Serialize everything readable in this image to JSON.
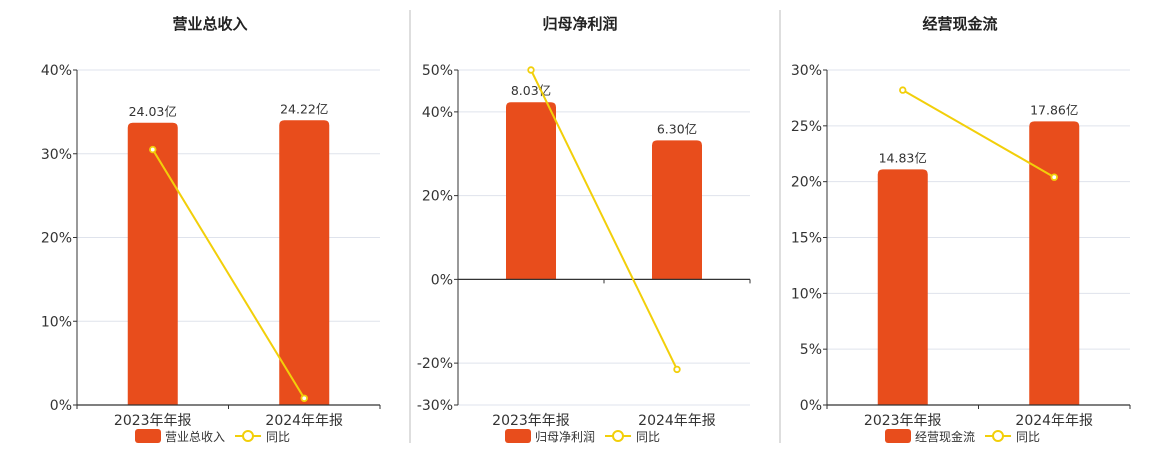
{
  "colors": {
    "bar": "#e84d1c",
    "line": "#f2cf0a",
    "grid": "#dfe3ec",
    "axis": "#333333",
    "divider": "#bdbdbd"
  },
  "legend": {
    "bar_icon": "filled-rounded-rect",
    "line_icon": "line-with-hollow-circle",
    "placement": "bottom-center"
  },
  "chart_data": [
    {
      "type": "bar",
      "title": "营业总收入",
      "categories": [
        "2023年年报",
        "2024年年报"
      ],
      "bar_label_name": "营业总收入",
      "line_label_name": "同比",
      "bar_labels": [
        "24.03亿",
        "24.22亿"
      ],
      "ylim": [
        0,
        40
      ],
      "yticks": [
        0,
        10,
        20,
        30,
        40
      ],
      "yticklabels": [
        "0%",
        "10%",
        "20%",
        "30%",
        "40%"
      ],
      "series": [
        {
          "name": "营业总收入",
          "type": "bar",
          "values": [
            33.7,
            34.0
          ]
        },
        {
          "name": "同比",
          "type": "line",
          "values": [
            30.5,
            0.8
          ]
        }
      ]
    },
    {
      "type": "bar",
      "title": "归母净利润",
      "categories": [
        "2023年年报",
        "2024年年报"
      ],
      "bar_label_name": "归母净利润",
      "line_label_name": "同比",
      "bar_labels": [
        "8.03亿",
        "6.30亿"
      ],
      "ylim": [
        -30,
        50
      ],
      "yticks": [
        -30,
        -20,
        0,
        20,
        40,
        50
      ],
      "yticklabels": [
        "-30%",
        "-20%",
        "0%",
        "20%",
        "40%",
        "50%"
      ],
      "series": [
        {
          "name": "归母净利润",
          "type": "bar",
          "values": [
            42.3,
            33.2
          ]
        },
        {
          "name": "同比",
          "type": "line",
          "values": [
            50,
            -21.5
          ]
        }
      ]
    },
    {
      "type": "bar",
      "title": "经营现金流",
      "categories": [
        "2023年年报",
        "2024年年报"
      ],
      "bar_label_name": "经营现金流",
      "line_label_name": "同比",
      "bar_labels": [
        "14.83亿",
        "17.86亿"
      ],
      "ylim": [
        0,
        30
      ],
      "yticks": [
        0,
        5,
        10,
        15,
        20,
        25,
        30
      ],
      "yticklabels": [
        "0%",
        "5%",
        "10%",
        "15%",
        "20%",
        "25%",
        "30%"
      ],
      "series": [
        {
          "name": "经营现金流",
          "type": "bar",
          "values": [
            21.1,
            25.4
          ]
        },
        {
          "name": "同比",
          "type": "line",
          "values": [
            28.2,
            20.4
          ]
        }
      ]
    }
  ]
}
